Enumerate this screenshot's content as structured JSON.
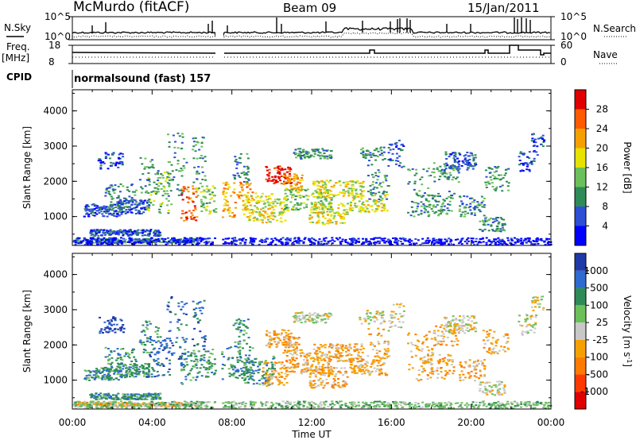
{
  "header": {
    "station": "McMurdo (fitACF)",
    "beam": "Beam 09",
    "date": "15/Jan/2011"
  },
  "sky_panel": {
    "left_label": "N.Sky",
    "right_label": "N.Search",
    "left_ticks": [
      "10^5",
      "10^0"
    ],
    "right_ticks": [
      "10^5",
      "10^0"
    ]
  },
  "freq_panel": {
    "left_label": "Freq.",
    "left_unit": "[MHz]",
    "right_label": "Nave",
    "left_ticks": [
      "18",
      "8"
    ],
    "right_ticks": [
      "60",
      "0"
    ]
  },
  "cpid": {
    "label": "CPID",
    "value": "normalsound (fast) 157"
  },
  "chart_data": [
    {
      "type": "heatmap",
      "title": "",
      "ylabel": "Slant Range [km]",
      "y_ticks": [
        "1000",
        "2000",
        "3000",
        "4000"
      ],
      "ylim": [
        180,
        4600
      ],
      "xlim": [
        0,
        24
      ],
      "colorbar": {
        "label": "Power [dB]",
        "ticks": [
          "4",
          "8",
          "12",
          "16",
          "20",
          "24",
          "28"
        ],
        "colors": [
          "#0000ff",
          "#2c4fd6",
          "#2e8b57",
          "#6cc05a",
          "#e7e200",
          "#f6a000",
          "#ff5a00",
          "#e00000"
        ]
      }
    },
    {
      "type": "heatmap",
      "title": "",
      "ylabel": "Slant Range [km]",
      "y_ticks": [
        "1000",
        "2000",
        "3000",
        "4000"
      ],
      "ylim": [
        180,
        4600
      ],
      "xlim": [
        0,
        24
      ],
      "colorbar": {
        "label": "Velocity [m s",
        "label_sup": "-1",
        "label_end": "]",
        "ticks": [
          "1000",
          "500",
          "100",
          "25",
          "-25",
          "-100",
          "-500",
          "-1000"
        ],
        "colors": [
          "#1f3aa8",
          "#2e6ad0",
          "#2e8b57",
          "#6cc05a",
          "#c8c8c8",
          "#f6a000",
          "#ff7a00",
          "#ff3a00",
          "#e00000"
        ]
      }
    }
  ],
  "x_axis": {
    "label": "Time UT",
    "ticks": [
      "00:00",
      "04:00",
      "08:00",
      "12:00",
      "16:00",
      "20:00",
      "00:00"
    ]
  }
}
